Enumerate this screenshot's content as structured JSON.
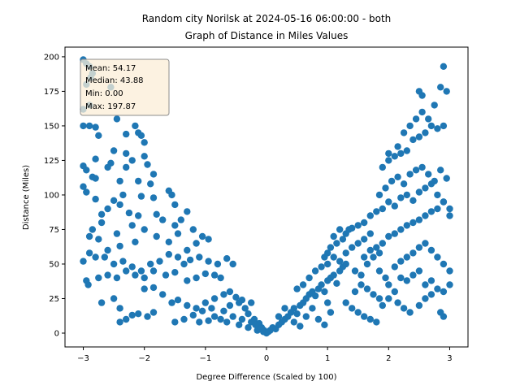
{
  "chart_data": {
    "type": "scatter",
    "title_line1": "Random city Norilsk at 2024-05-16 06:00:00  - both",
    "title_line2": "Graph of Distance in Miles Values",
    "xlabel": "Degree Difference (Scaled by 100)",
    "ylabel": "Distance (Miles)",
    "xlim": [
      -3.3,
      3.3
    ],
    "ylim": [
      -10,
      207
    ],
    "xticks": [
      -3,
      -2,
      -1,
      0,
      1,
      2,
      3
    ],
    "yticks": [
      0,
      25,
      50,
      75,
      100,
      125,
      150,
      175,
      200
    ],
    "xtick_labels": [
      "−3",
      "−2",
      "−1",
      "0",
      "1",
      "2",
      "3"
    ],
    "ytick_labels": [
      "0",
      "25",
      "50",
      "75",
      "100",
      "125",
      "150",
      "175",
      "200"
    ],
    "point_color": "#1f77b4",
    "grid": false,
    "stats_box": {
      "mean": "Mean: 54.17",
      "median": "Median: 43.88",
      "min": "Min: 0.00",
      "max": "Max: 197.87",
      "placement": "top-left",
      "face_color": "#fbeed7",
      "edge_color": "#8c8c8c"
    },
    "points": [
      [
        -3.0,
        197.87
      ],
      [
        -2.95,
        195
      ],
      [
        -2.9,
        193
      ],
      [
        -2.85,
        188
      ],
      [
        -2.55,
        178
      ],
      [
        -3.0,
        162
      ],
      [
        -2.9,
        165
      ],
      [
        -2.95,
        180
      ],
      [
        -2.88,
        185
      ],
      [
        -3.0,
        150
      ],
      [
        -2.9,
        150
      ],
      [
        -2.8,
        149
      ],
      [
        -2.75,
        143
      ],
      [
        -2.45,
        155
      ],
      [
        -2.3,
        144
      ],
      [
        -2.15,
        150
      ],
      [
        -2.1,
        145
      ],
      [
        -2.05,
        143
      ],
      [
        -2.0,
        138
      ],
      [
        -2.3,
        130
      ],
      [
        -2.5,
        132
      ],
      [
        -2.8,
        126
      ],
      [
        -3.0,
        121
      ],
      [
        -2.95,
        118
      ],
      [
        -2.85,
        113
      ],
      [
        -2.8,
        112
      ],
      [
        -2.6,
        120
      ],
      [
        -2.55,
        123
      ],
      [
        -2.3,
        120
      ],
      [
        -2.2,
        125
      ],
      [
        -2.0,
        128
      ],
      [
        -1.95,
        122
      ],
      [
        -1.85,
        115
      ],
      [
        -1.9,
        108
      ],
      [
        -2.1,
        110
      ],
      [
        -2.4,
        110
      ],
      [
        -2.35,
        100
      ],
      [
        -2.05,
        99
      ],
      [
        -1.85,
        98
      ],
      [
        -1.6,
        103
      ],
      [
        -1.55,
        100
      ],
      [
        -1.5,
        93
      ],
      [
        -1.3,
        88
      ],
      [
        -1.4,
        82
      ],
      [
        -3.0,
        106
      ],
      [
        -2.95,
        102
      ],
      [
        -2.8,
        97
      ],
      [
        -2.6,
        90
      ],
      [
        -2.7,
        86
      ],
      [
        -2.5,
        96
      ],
      [
        -2.4,
        93
      ],
      [
        -2.25,
        87
      ],
      [
        -2.1,
        85
      ],
      [
        -1.8,
        86
      ],
      [
        -1.7,
        82
      ],
      [
        -1.5,
        78
      ],
      [
        -1.45,
        72
      ],
      [
        -1.2,
        75
      ],
      [
        -1.15,
        65
      ],
      [
        -1.05,
        70
      ],
      [
        -0.95,
        68
      ],
      [
        -1.3,
        60
      ],
      [
        -1.6,
        66
      ],
      [
        -1.8,
        70
      ],
      [
        -2.0,
        75
      ],
      [
        -2.2,
        78
      ],
      [
        -2.45,
        72
      ],
      [
        -2.7,
        80
      ],
      [
        -2.85,
        75
      ],
      [
        -2.9,
        70
      ],
      [
        -2.75,
        68
      ],
      [
        -2.6,
        60
      ],
      [
        -2.4,
        63
      ],
      [
        -2.15,
        66
      ],
      [
        -2.9,
        58
      ],
      [
        -2.8,
        55
      ],
      [
        -2.65,
        55
      ],
      [
        -2.5,
        50
      ],
      [
        -2.35,
        52
      ],
      [
        -2.2,
        48
      ],
      [
        -2.05,
        45
      ],
      [
        -1.9,
        50
      ],
      [
        -1.75,
        52
      ],
      [
        -1.6,
        57
      ],
      [
        -1.45,
        55
      ],
      [
        -1.35,
        50
      ],
      [
        -1.25,
        53
      ],
      [
        -1.1,
        55
      ],
      [
        -0.95,
        52
      ],
      [
        -0.8,
        50
      ],
      [
        -0.65,
        54
      ],
      [
        -0.55,
        50
      ],
      [
        -0.75,
        40
      ],
      [
        -0.85,
        42
      ],
      [
        -1.0,
        43
      ],
      [
        -1.15,
        40
      ],
      [
        -1.3,
        38
      ],
      [
        -1.5,
        44
      ],
      [
        -1.65,
        42
      ],
      [
        -1.85,
        45
      ],
      [
        -2.0,
        40
      ],
      [
        -2.15,
        42
      ],
      [
        -2.3,
        45
      ],
      [
        -2.45,
        40
      ],
      [
        -2.6,
        42
      ],
      [
        -2.75,
        40
      ],
      [
        -2.95,
        38
      ],
      [
        -3.0,
        52
      ],
      [
        -2.92,
        35
      ],
      [
        -2.7,
        22
      ],
      [
        -2.5,
        25
      ],
      [
        -2.4,
        18
      ],
      [
        -2.2,
        13
      ],
      [
        -2.1,
        14
      ],
      [
        -1.95,
        12
      ],
      [
        -1.85,
        15
      ],
      [
        -2.0,
        32
      ],
      [
        -1.85,
        33
      ],
      [
        -1.7,
        28
      ],
      [
        -1.55,
        22
      ],
      [
        -1.45,
        24
      ],
      [
        -1.3,
        20
      ],
      [
        -1.15,
        18
      ],
      [
        -1.0,
        22
      ],
      [
        -0.85,
        25
      ],
      [
        -0.7,
        28
      ],
      [
        -0.6,
        30
      ],
      [
        -0.5,
        26
      ],
      [
        -0.45,
        22
      ],
      [
        -0.35,
        18
      ],
      [
        -0.3,
        14
      ],
      [
        -0.2,
        10
      ],
      [
        -0.12,
        7
      ],
      [
        -0.08,
        4
      ],
      [
        -0.04,
        2
      ],
      [
        0.0,
        0.0
      ],
      [
        -2.4,
        8
      ],
      [
        -2.3,
        10
      ],
      [
        -1.5,
        8
      ],
      [
        -1.35,
        10
      ],
      [
        -1.2,
        13
      ],
      [
        -1.1,
        8
      ],
      [
        -0.95,
        9
      ],
      [
        -0.85,
        12
      ],
      [
        -0.75,
        10
      ],
      [
        -0.65,
        8
      ],
      [
        -0.55,
        12
      ],
      [
        -0.45,
        6
      ],
      [
        -0.4,
        10
      ],
      [
        -0.3,
        4
      ],
      [
        -0.25,
        8
      ],
      [
        -0.18,
        6
      ],
      [
        -0.15,
        2
      ],
      [
        -0.1,
        3
      ],
      [
        -0.05,
        1
      ],
      [
        -0.7,
        16
      ],
      [
        -0.9,
        18
      ],
      [
        -1.05,
        16
      ],
      [
        -0.6,
        20
      ],
      [
        -0.4,
        24
      ],
      [
        -0.25,
        22
      ],
      [
        0.03,
        1
      ],
      [
        0.06,
        2
      ],
      [
        0.1,
        4
      ],
      [
        0.15,
        3
      ],
      [
        0.2,
        6
      ],
      [
        0.25,
        8
      ],
      [
        0.3,
        10
      ],
      [
        0.35,
        12
      ],
      [
        0.4,
        15
      ],
      [
        0.45,
        18
      ],
      [
        0.5,
        14
      ],
      [
        0.55,
        20
      ],
      [
        0.6,
        22
      ],
      [
        0.65,
        25
      ],
      [
        0.7,
        28
      ],
      [
        0.75,
        30
      ],
      [
        0.8,
        27
      ],
      [
        0.85,
        32
      ],
      [
        0.9,
        35
      ],
      [
        0.95,
        30
      ],
      [
        1.0,
        38
      ],
      [
        1.05,
        40
      ],
      [
        1.1,
        42
      ],
      [
        1.15,
        36
      ],
      [
        1.2,
        45
      ],
      [
        1.25,
        48
      ],
      [
        1.3,
        50
      ],
      [
        0.2,
        12
      ],
      [
        0.3,
        18
      ],
      [
        0.45,
        8
      ],
      [
        0.55,
        5
      ],
      [
        0.65,
        12
      ],
      [
        0.75,
        18
      ],
      [
        0.85,
        10
      ],
      [
        0.95,
        6
      ],
      [
        1.0,
        22
      ],
      [
        1.05,
        15
      ],
      [
        0.5,
        32
      ],
      [
        0.6,
        35
      ],
      [
        0.7,
        40
      ],
      [
        0.8,
        45
      ],
      [
        0.9,
        48
      ],
      [
        1.0,
        50
      ],
      [
        1.1,
        55
      ],
      [
        1.2,
        52
      ],
      [
        1.3,
        58
      ],
      [
        1.4,
        62
      ],
      [
        1.5,
        65
      ],
      [
        1.6,
        68
      ],
      [
        1.7,
        72
      ],
      [
        1.35,
        75
      ],
      [
        1.4,
        76
      ],
      [
        1.3,
        72
      ],
      [
        1.25,
        68
      ],
      [
        1.15,
        65
      ],
      [
        1.05,
        62
      ],
      [
        1.0,
        58
      ],
      [
        0.95,
        55
      ],
      [
        1.1,
        70
      ],
      [
        1.2,
        75
      ],
      [
        1.45,
        45
      ],
      [
        1.55,
        42
      ],
      [
        1.65,
        50
      ],
      [
        1.75,
        55
      ],
      [
        1.85,
        58
      ],
      [
        1.3,
        22
      ],
      [
        1.4,
        18
      ],
      [
        1.5,
        15
      ],
      [
        1.6,
        12
      ],
      [
        1.7,
        10
      ],
      [
        1.8,
        8
      ],
      [
        1.9,
        20
      ],
      [
        2.0,
        25
      ],
      [
        2.1,
        30
      ],
      [
        1.45,
        30
      ],
      [
        1.55,
        35
      ],
      [
        1.65,
        32
      ],
      [
        1.75,
        28
      ],
      [
        1.85,
        25
      ],
      [
        2.15,
        22
      ],
      [
        2.25,
        18
      ],
      [
        2.35,
        15
      ],
      [
        2.5,
        20
      ],
      [
        2.6,
        25
      ],
      [
        2.7,
        28
      ],
      [
        2.85,
        15
      ],
      [
        2.9,
        12
      ],
      [
        1.5,
        78
      ],
      [
        1.6,
        80
      ],
      [
        1.7,
        85
      ],
      [
        1.8,
        88
      ],
      [
        1.9,
        90
      ],
      [
        2.0,
        95
      ],
      [
        2.1,
        92
      ],
      [
        2.2,
        98
      ],
      [
        2.3,
        100
      ],
      [
        2.4,
        96
      ],
      [
        2.5,
        102
      ],
      [
        2.6,
        105
      ],
      [
        2.7,
        108
      ],
      [
        2.8,
        100
      ],
      [
        2.9,
        95
      ],
      [
        3.0,
        90
      ],
      [
        1.85,
        100
      ],
      [
        1.95,
        105
      ],
      [
        2.05,
        110
      ],
      [
        2.15,
        113
      ],
      [
        2.25,
        108
      ],
      [
        2.35,
        115
      ],
      [
        2.45,
        118
      ],
      [
        2.55,
        120
      ],
      [
        2.65,
        115
      ],
      [
        2.75,
        110
      ],
      [
        2.85,
        118
      ],
      [
        2.95,
        112
      ],
      [
        1.9,
        120
      ],
      [
        2.0,
        125
      ],
      [
        2.1,
        128
      ],
      [
        2.2,
        130
      ],
      [
        2.3,
        132
      ],
      [
        2.4,
        140
      ],
      [
        2.5,
        142
      ],
      [
        2.6,
        145
      ],
      [
        2.7,
        150
      ],
      [
        2.8,
        148
      ],
      [
        2.9,
        150
      ],
      [
        2.0,
        130
      ],
      [
        2.15,
        135
      ],
      [
        2.25,
        145
      ],
      [
        2.35,
        150
      ],
      [
        2.45,
        155
      ],
      [
        2.55,
        160
      ],
      [
        2.65,
        155
      ],
      [
        2.75,
        165
      ],
      [
        2.85,
        178
      ],
      [
        2.95,
        175
      ],
      [
        2.9,
        193
      ],
      [
        2.55,
        172
      ],
      [
        2.5,
        175
      ],
      [
        1.6,
        55
      ],
      [
        1.7,
        60
      ],
      [
        1.8,
        62
      ],
      [
        1.9,
        65
      ],
      [
        2.0,
        70
      ],
      [
        2.1,
        72
      ],
      [
        2.2,
        75
      ],
      [
        2.3,
        78
      ],
      [
        2.4,
        80
      ],
      [
        2.5,
        82
      ],
      [
        2.6,
        85
      ],
      [
        2.7,
        88
      ],
      [
        2.8,
        90
      ],
      [
        2.9,
        95
      ],
      [
        3.0,
        85
      ],
      [
        2.1,
        48
      ],
      [
        2.2,
        52
      ],
      [
        2.3,
        55
      ],
      [
        2.4,
        58
      ],
      [
        2.5,
        62
      ],
      [
        2.6,
        65
      ],
      [
        2.7,
        60
      ],
      [
        2.8,
        55
      ],
      [
        2.9,
        50
      ],
      [
        3.0,
        45
      ],
      [
        2.2,
        40
      ],
      [
        2.3,
        38
      ],
      [
        2.4,
        42
      ],
      [
        2.5,
        45
      ],
      [
        2.6,
        35
      ],
      [
        2.7,
        38
      ],
      [
        2.8,
        32
      ],
      [
        2.9,
        30
      ],
      [
        3.0,
        35
      ],
      [
        2.0,
        35
      ],
      [
        1.95,
        40
      ],
      [
        1.85,
        45
      ]
    ]
  }
}
